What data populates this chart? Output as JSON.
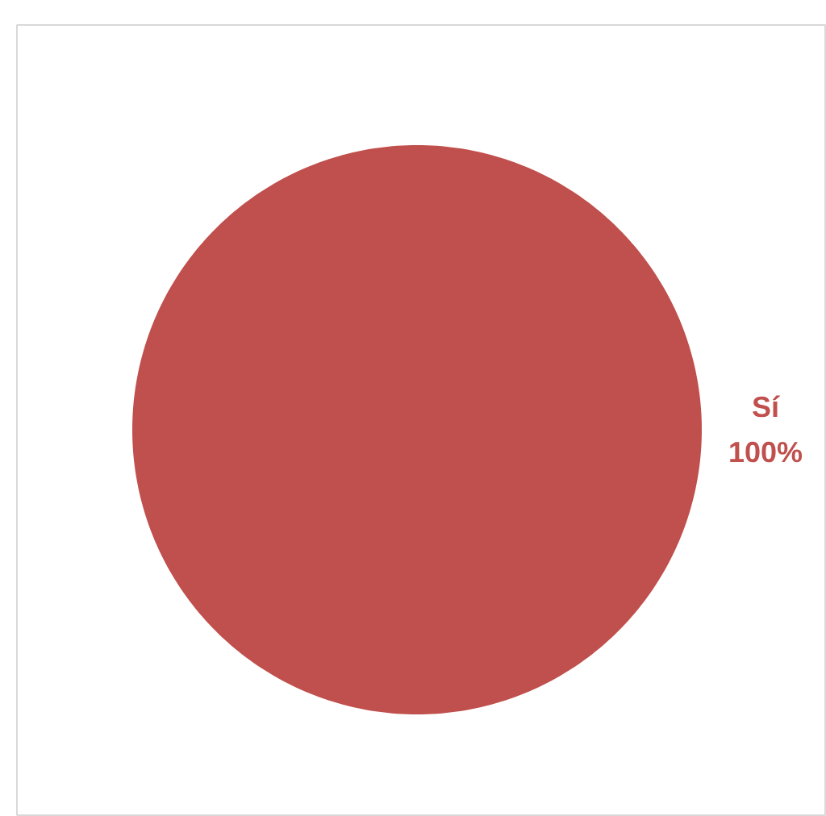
{
  "chart_data": {
    "type": "pie",
    "categories": [
      "Sí"
    ],
    "values": [
      100
    ],
    "colors": [
      "#c0504d"
    ],
    "value_labels": [
      "100%"
    ]
  }
}
